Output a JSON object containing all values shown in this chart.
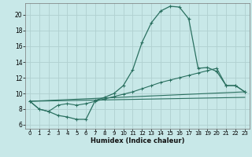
{
  "xlabel": "Humidex (Indice chaleur)",
  "bg_color": "#c8e8e8",
  "grid_color": "#b0d0d0",
  "line_color": "#2a7060",
  "xlim": [
    -0.5,
    23.5
  ],
  "ylim": [
    5.5,
    21.5
  ],
  "yticks": [
    6,
    8,
    10,
    12,
    14,
    16,
    18,
    20
  ],
  "xticks": [
    0,
    1,
    2,
    3,
    4,
    5,
    6,
    7,
    8,
    9,
    10,
    11,
    12,
    13,
    14,
    15,
    16,
    17,
    18,
    19,
    20,
    21,
    22,
    23
  ],
  "line1_x": [
    0,
    1,
    2,
    3,
    4,
    5,
    6,
    7,
    8,
    9,
    10,
    11,
    12,
    13,
    14,
    15,
    16,
    17,
    18,
    19,
    20,
    21,
    22,
    23
  ],
  "line1_y": [
    9.0,
    8.0,
    7.7,
    7.2,
    7.0,
    6.7,
    6.7,
    9.1,
    9.5,
    10.0,
    11.0,
    13.0,
    16.5,
    19.0,
    20.5,
    21.1,
    21.0,
    19.5,
    13.2,
    13.3,
    12.8,
    11.0,
    11.0,
    10.2
  ],
  "line2_x": [
    0,
    1,
    2,
    3,
    4,
    5,
    6,
    7,
    8,
    9,
    10,
    11,
    12,
    13,
    14,
    15,
    16,
    17,
    18,
    19,
    20,
    21,
    22,
    23
  ],
  "line2_y": [
    9.0,
    8.0,
    7.7,
    8.5,
    8.7,
    8.5,
    8.7,
    9.0,
    9.3,
    9.6,
    9.9,
    10.2,
    10.6,
    11.0,
    11.4,
    11.7,
    12.0,
    12.3,
    12.6,
    12.9,
    13.2,
    11.0,
    11.0,
    10.2
  ],
  "line3_x": [
    0,
    23
  ],
  "line3_y": [
    9.0,
    10.2
  ],
  "line4_x": [
    0,
    23
  ],
  "line4_y": [
    9.0,
    9.5
  ]
}
